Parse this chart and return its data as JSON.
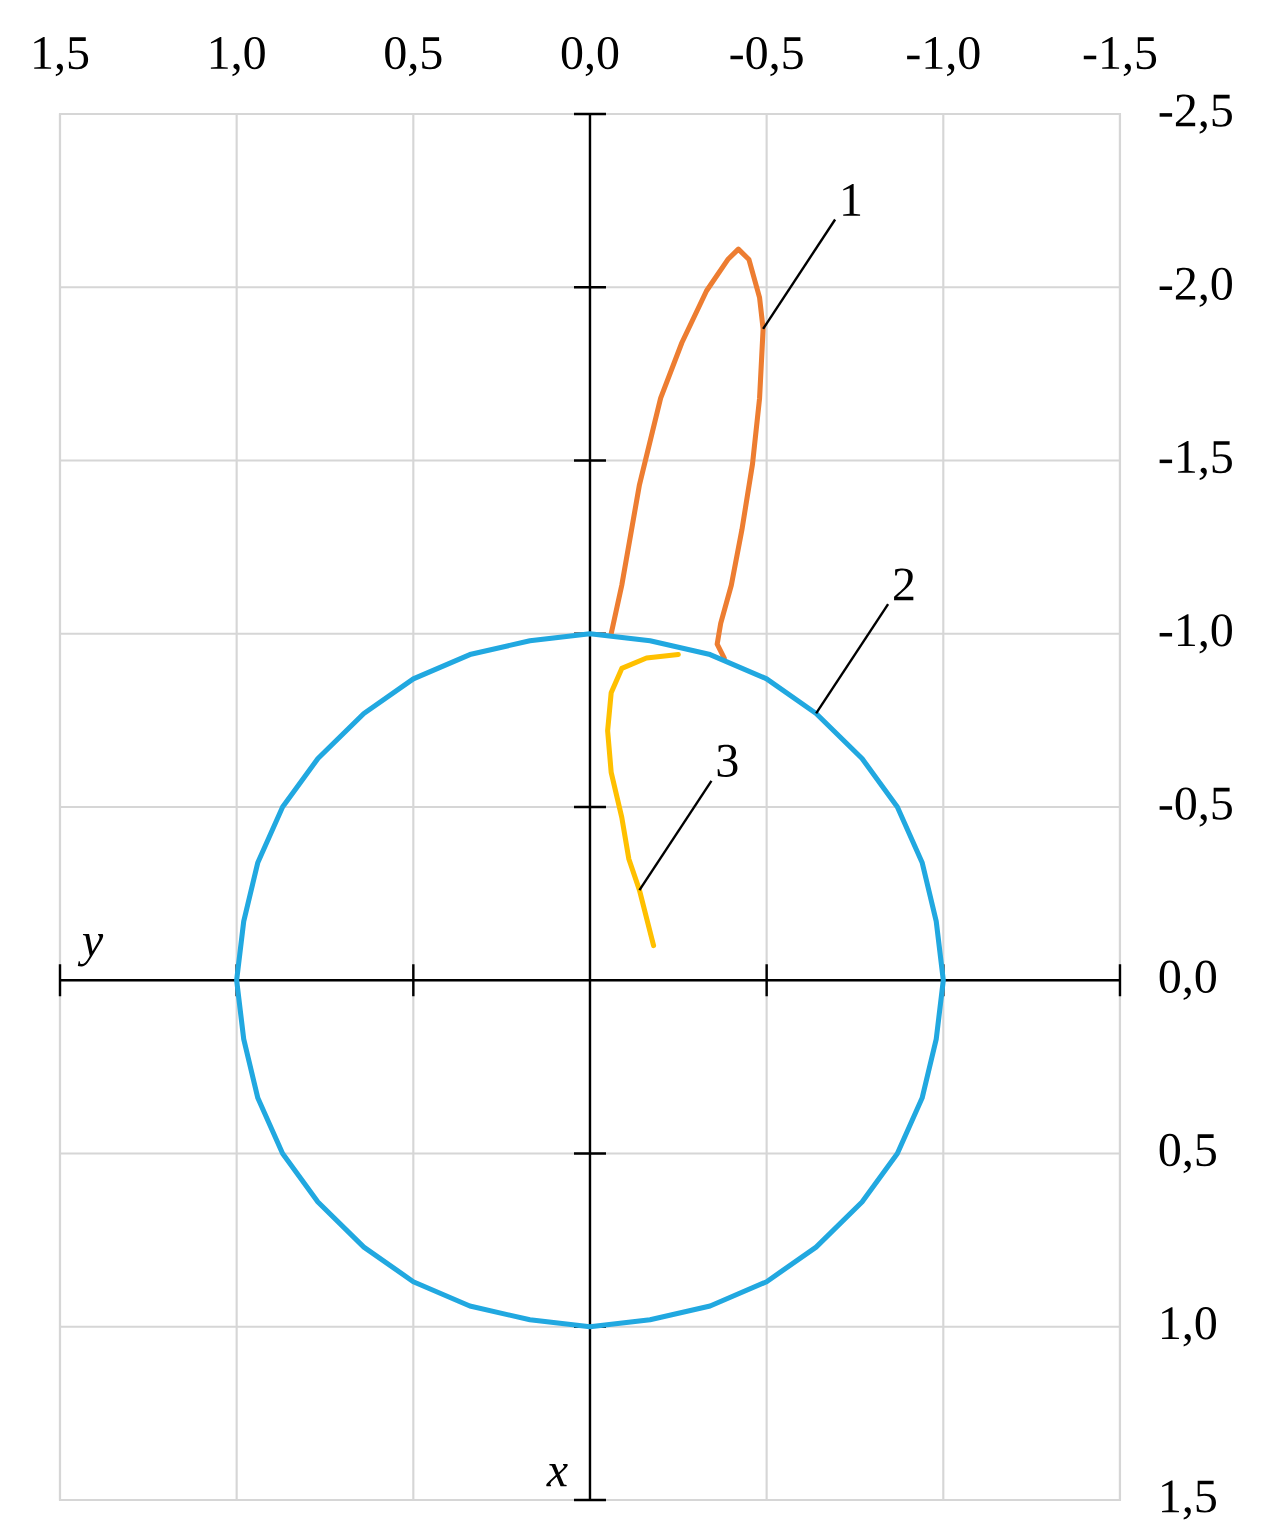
{
  "chart_data": {
    "type": "line",
    "xlabel": "y",
    "ylabel": "x",
    "xlim": [
      1.5,
      -1.5
    ],
    "ylim": [
      1.5,
      -2.5
    ],
    "xticks": [
      {
        "value": 1.5,
        "label": "1,5"
      },
      {
        "value": 1.0,
        "label": "1,0"
      },
      {
        "value": 0.5,
        "label": "0,5"
      },
      {
        "value": 0,
        "label": "0,0"
      },
      {
        "value": -0.5,
        "label": "-0,5"
      },
      {
        "value": -1.0,
        "label": "-1,0"
      },
      {
        "value": -1.5,
        "label": "-1,5"
      }
    ],
    "yticks": [
      {
        "value": -2.5,
        "label": "-2,5"
      },
      {
        "value": -2.0,
        "label": "-2,0"
      },
      {
        "value": -1.5,
        "label": "-1,5"
      },
      {
        "value": -1.0,
        "label": "-1,0"
      },
      {
        "value": -0.5,
        "label": "-0,5"
      },
      {
        "value": 0,
        "label": "0,0"
      },
      {
        "value": 0.5,
        "label": "0,5"
      },
      {
        "value": 1.0,
        "label": "1,0"
      },
      {
        "value": 1.5,
        "label": "1,5"
      }
    ],
    "grid": true,
    "marker": "none",
    "line_style": "solid",
    "series": [
      {
        "color": "#ed7d31",
        "x": [
          -0.06,
          -0.09,
          -0.14,
          -0.2,
          -0.26,
          -0.33,
          -0.39,
          -0.42,
          -0.45,
          -0.48,
          -0.49,
          -0.48,
          -0.46,
          -0.43,
          -0.4,
          -0.37,
          -0.36,
          -0.38
        ],
        "values": [
          -1.0,
          -1.14,
          -1.43,
          -1.68,
          -1.84,
          -1.99,
          -2.08,
          -2.11,
          -2.08,
          -1.97,
          -1.88,
          -1.68,
          -1.49,
          -1.3,
          -1.14,
          -1.03,
          -0.97,
          -0.93
        ]
      },
      {
        "color": "#21a8e0",
        "x": [
          1,
          0.98,
          0.94,
          0.87,
          0.77,
          0.64,
          0.5,
          0.34,
          0.17,
          0,
          -0.17,
          -0.34,
          -0.5,
          -0.64,
          -0.77,
          -0.87,
          -0.94,
          -0.98,
          -1,
          -0.98,
          -0.94,
          -0.87,
          -0.77,
          -0.64,
          -0.5,
          -0.34,
          -0.17,
          0,
          0.17,
          0.34,
          0.5,
          0.64,
          0.77,
          0.87,
          0.94,
          0.98,
          1,
          0.98
        ],
        "values": [
          0,
          0.17,
          0.34,
          0.5,
          0.64,
          0.77,
          0.87,
          0.94,
          0.98,
          1,
          0.98,
          0.94,
          0.87,
          0.77,
          0.64,
          0.5,
          0.34,
          0.17,
          0,
          -0.17,
          -0.34,
          -0.5,
          -0.64,
          -0.77,
          -0.87,
          -0.94,
          -0.98,
          -1,
          -0.98,
          -0.94,
          -0.87,
          -0.77,
          -0.64,
          -0.5,
          -0.34,
          -0.17,
          0,
          0.17
        ]
      },
      {
        "color": "#ffc000",
        "x": [
          -0.25,
          -0.16,
          -0.09,
          -0.06,
          -0.05,
          -0.06,
          -0.09,
          -0.11,
          -0.14,
          -0.18
        ],
        "values": [
          -0.94,
          -0.93,
          -0.9,
          -0.83,
          -0.72,
          -0.6,
          -0.47,
          -0.35,
          -0.26,
          -0.1
        ]
      }
    ],
    "annotations": [
      {
        "text": "1",
        "x": -0.49,
        "y": -1.88
      },
      {
        "text": "2",
        "x": -0.64,
        "y": -0.77
      },
      {
        "text": "3",
        "x": -0.14,
        "y": -0.26
      }
    ]
  }
}
